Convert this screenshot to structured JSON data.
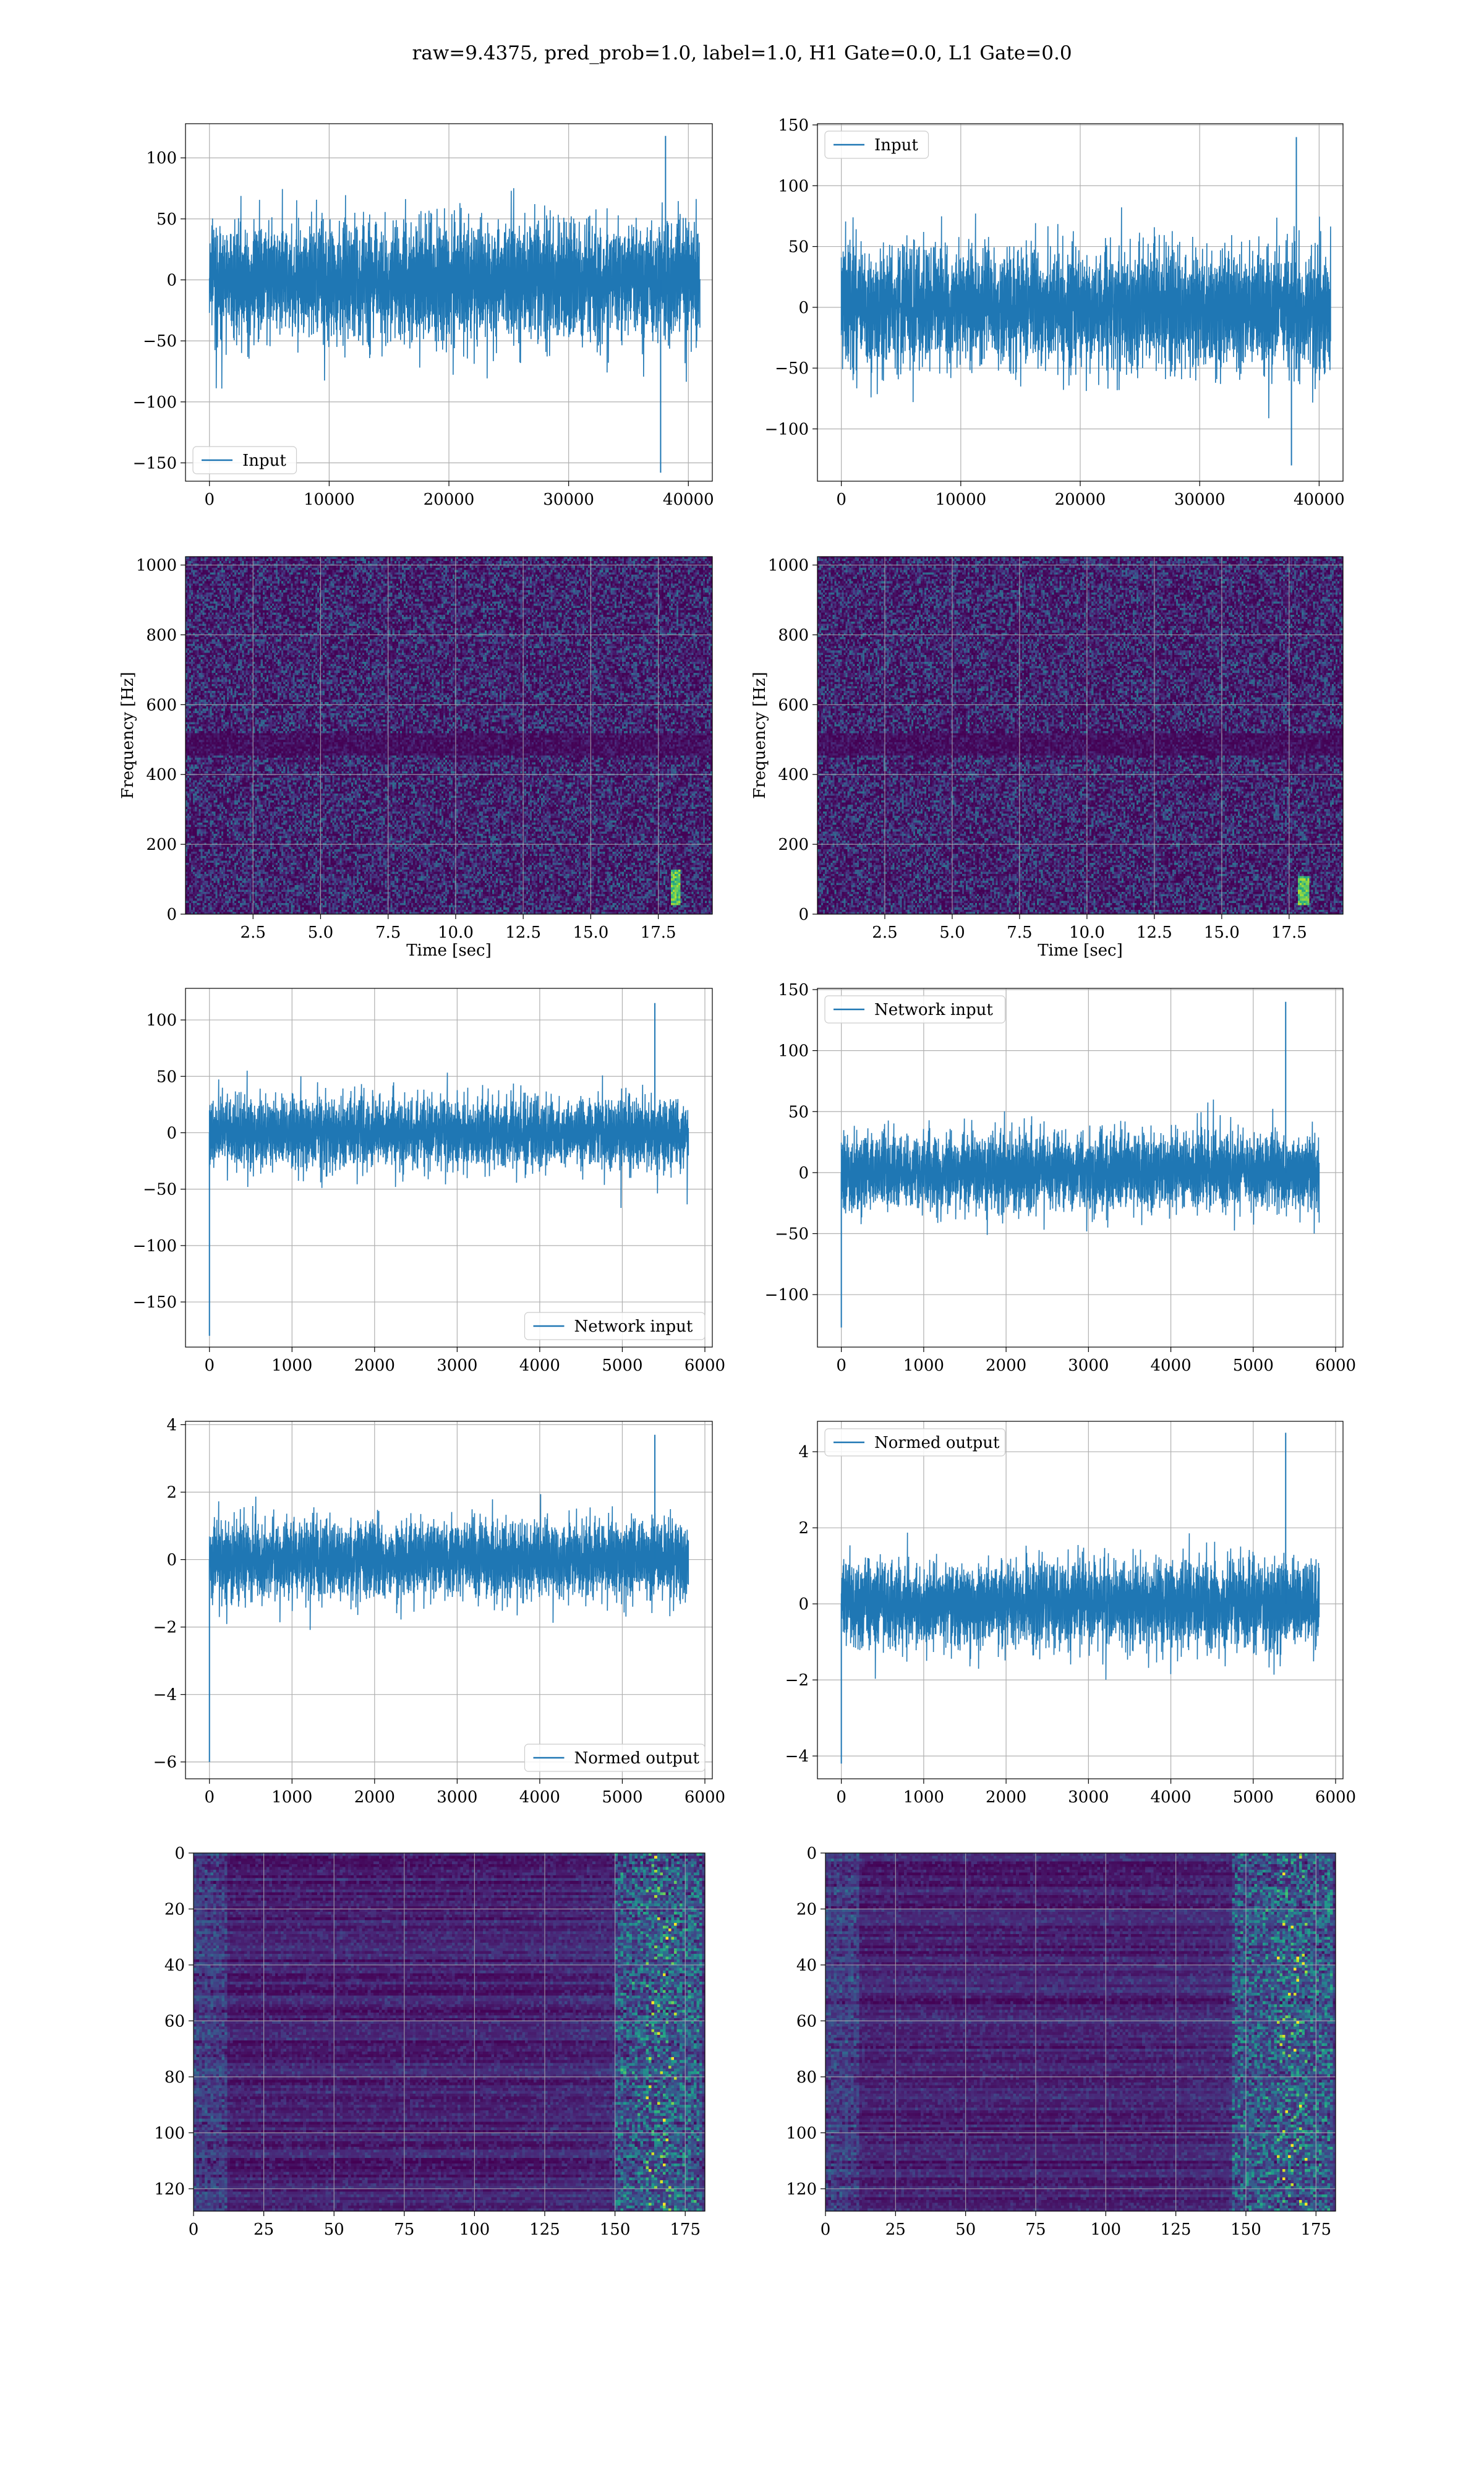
{
  "suptitle": "raw=9.4375, pred_prob=1.0, label=1.0, H1 Gate=0.0, L1 Gate=0.0",
  "colors": {
    "line": "#1f77b4",
    "grid": "#b0b0b0",
    "viridis_bg": "#440154"
  },
  "chart_data": [
    {
      "id": "h1-input",
      "type": "line",
      "series": [
        {
          "name": "Input"
        }
      ],
      "legend_position": "lower-left",
      "xlim": [
        -2000,
        42000
      ],
      "ylim": [
        -165,
        128
      ],
      "xticks": [
        0,
        10000,
        20000,
        30000,
        40000
      ],
      "yticks": [
        -150,
        -100,
        -50,
        0,
        50,
        100
      ],
      "n_points": 40960,
      "typical_amplitude": 60,
      "min": -158,
      "max": 118
    },
    {
      "id": "l1-input",
      "type": "line",
      "series": [
        {
          "name": "Input"
        }
      ],
      "legend_position": "upper-left",
      "xlim": [
        -2000,
        42000
      ],
      "ylim": [
        -143,
        151
      ],
      "xticks": [
        0,
        10000,
        20000,
        30000,
        40000
      ],
      "yticks": [
        -100,
        -50,
        0,
        50,
        100,
        150
      ],
      "n_points": 40960,
      "typical_amplitude": 60,
      "min": -130,
      "max": 140
    },
    {
      "id": "h1-spectrogram",
      "type": "heatmap",
      "xlabel": "Time [sec]",
      "ylabel": "Frequency [Hz]",
      "xlim": [
        0,
        19.5
      ],
      "ylim": [
        0,
        1024
      ],
      "xticks": [
        "2.5",
        "5.0",
        "7.5",
        "10.0",
        "12.5",
        "15.0",
        "17.5"
      ],
      "yticks": [
        "0",
        "200",
        "400",
        "600",
        "800",
        "1000"
      ],
      "features": {
        "dark_band_hz": [
          460,
          520
        ],
        "chirp_time_sec": 18.1,
        "chirp_freq_hz": [
          30,
          130
        ]
      }
    },
    {
      "id": "l1-spectrogram",
      "type": "heatmap",
      "xlabel": "Time [sec]",
      "ylabel": "Frequency [Hz]",
      "xlim": [
        0,
        19.5
      ],
      "ylim": [
        0,
        1024
      ],
      "xticks": [
        "2.5",
        "5.0",
        "7.5",
        "10.0",
        "12.5",
        "15.0",
        "17.5"
      ],
      "yticks": [
        "0",
        "200",
        "400",
        "600",
        "800",
        "1000"
      ],
      "features": {
        "dark_band_hz": [
          460,
          520
        ],
        "chirp_time_sec": 18.0,
        "chirp_freq_hz": [
          30,
          110
        ]
      }
    },
    {
      "id": "h1-network-input",
      "type": "line",
      "series": [
        {
          "name": "Network input"
        }
      ],
      "legend_position": "lower-right",
      "xlim": [
        -290,
        6090
      ],
      "ylim": [
        -190,
        128
      ],
      "xticks": [
        0,
        1000,
        2000,
        3000,
        4000,
        5000,
        6000
      ],
      "yticks": [
        -150,
        -100,
        -50,
        0,
        50,
        100
      ],
      "n_points": 5800,
      "typical_amplitude": 38,
      "min": -180,
      "max": 115
    },
    {
      "id": "l1-network-input",
      "type": "line",
      "series": [
        {
          "name": "Network input"
        }
      ],
      "legend_position": "upper-left",
      "xlim": [
        -290,
        6090
      ],
      "ylim": [
        -143,
        151
      ],
      "xticks": [
        0,
        1000,
        2000,
        3000,
        4000,
        5000,
        6000
      ],
      "yticks": [
        -100,
        -50,
        0,
        50,
        100,
        150
      ],
      "n_points": 5800,
      "typical_amplitude": 38,
      "min": -127,
      "max": 140
    },
    {
      "id": "h1-normed-output",
      "type": "line",
      "series": [
        {
          "name": "Normed output"
        }
      ],
      "legend_position": "lower-right",
      "xlim": [
        -290,
        6090
      ],
      "ylim": [
        -6.5,
        4.1
      ],
      "xticks": [
        0,
        1000,
        2000,
        3000,
        4000,
        5000,
        6000
      ],
      "yticks": [
        -6,
        -4,
        -2,
        0,
        2,
        4
      ],
      "n_points": 5800,
      "typical_amplitude": 1.4,
      "min": -6.0,
      "max": 3.7
    },
    {
      "id": "l1-normed-output",
      "type": "line",
      "series": [
        {
          "name": "Normed output"
        }
      ],
      "legend_position": "upper-left",
      "xlim": [
        -290,
        6090
      ],
      "ylim": [
        -4.6,
        4.8
      ],
      "xticks": [
        0,
        1000,
        2000,
        3000,
        4000,
        5000,
        6000
      ],
      "yticks": [
        -4,
        -2,
        0,
        2,
        4
      ],
      "n_points": 5800,
      "typical_amplitude": 1.4,
      "min": -4.2,
      "max": 4.5
    },
    {
      "id": "h1-feature-map",
      "type": "heatmap",
      "xlim": [
        0,
        182
      ],
      "ylim": [
        128,
        0
      ],
      "xticks": [
        "0",
        "25",
        "50",
        "75",
        "100",
        "125",
        "150",
        "175"
      ],
      "yticks": [
        "0",
        "20",
        "40",
        "60",
        "80",
        "100",
        "120"
      ],
      "features": {
        "rows": 128,
        "cols": 182,
        "bright_cols": [
          150,
          180
        ]
      }
    },
    {
      "id": "l1-feature-map",
      "type": "heatmap",
      "xlim": [
        0,
        182
      ],
      "ylim": [
        128,
        0
      ],
      "xticks": [
        "0",
        "25",
        "50",
        "75",
        "100",
        "125",
        "150",
        "175"
      ],
      "yticks": [
        "0",
        "20",
        "40",
        "60",
        "80",
        "100",
        "120"
      ],
      "features": {
        "rows": 128,
        "cols": 182,
        "bright_cols": [
          145,
          180
        ]
      }
    }
  ]
}
